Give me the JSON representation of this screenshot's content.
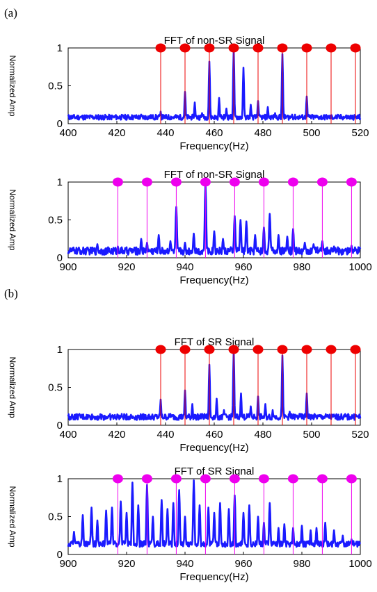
{
  "panel_labels": [
    "(a)",
    "(b)"
  ],
  "colors": {
    "signal": "#1a1aff",
    "marker_red": "#ee0000",
    "marker_magenta": "#ee00ee",
    "axis": "#000000"
  },
  "chart_data": [
    {
      "type": "line",
      "title": "FFT of non-SR Signal",
      "xlabel": "Frequency(Hz)",
      "ylabel": "Normalized Amp",
      "xlim": [
        400,
        520
      ],
      "ylim": [
        0,
        1
      ],
      "xticks": [
        400,
        420,
        440,
        460,
        480,
        500,
        520
      ],
      "yticks": [
        0,
        0.5,
        1
      ],
      "grid": false,
      "marker_color": "#ee0000",
      "markers": [
        438,
        448,
        458,
        468,
        478,
        488,
        498,
        508,
        518
      ],
      "baseline": 0.05,
      "noise": 0.07,
      "peaks": [
        [
          430,
          0.12
        ],
        [
          434,
          0.1
        ],
        [
          438,
          0.16
        ],
        [
          444,
          0.08
        ],
        [
          448,
          0.42
        ],
        [
          452,
          0.28
        ],
        [
          455,
          0.14
        ],
        [
          458,
          0.82
        ],
        [
          462,
          0.34
        ],
        [
          465,
          0.2
        ],
        [
          468,
          0.98
        ],
        [
          472,
          0.74
        ],
        [
          475,
          0.25
        ],
        [
          478,
          0.3
        ],
        [
          482,
          0.22
        ],
        [
          485,
          0.14
        ],
        [
          488,
          0.92
        ],
        [
          492,
          0.12
        ],
        [
          495,
          0.08
        ],
        [
          498,
          0.36
        ],
        [
          505,
          0.07
        ],
        [
          512,
          0.06
        ],
        [
          516,
          0.08
        ]
      ]
    },
    {
      "type": "line",
      "title": "FFT of non-SR Signal",
      "xlabel": "Frequency(Hz)",
      "ylabel": "Normalized Amp",
      "xlim": [
        900,
        1000
      ],
      "ylim": [
        0,
        1
      ],
      "xticks": [
        900,
        920,
        940,
        960,
        980,
        1000
      ],
      "yticks": [
        0,
        0.5,
        1
      ],
      "grid": false,
      "marker_color": "#ee00ee",
      "markers": [
        917,
        927,
        937,
        947,
        957,
        967,
        977,
        987,
        997
      ],
      "baseline": 0.04,
      "noise": 0.1,
      "peaks": [
        [
          910,
          0.18
        ],
        [
          917,
          0.15
        ],
        [
          921,
          0.12
        ],
        [
          925,
          0.25
        ],
        [
          927,
          0.2
        ],
        [
          931,
          0.3
        ],
        [
          935,
          0.22
        ],
        [
          937,
          0.67
        ],
        [
          940,
          0.2
        ],
        [
          943,
          0.32
        ],
        [
          947,
          0.97
        ],
        [
          950,
          0.35
        ],
        [
          953,
          0.25
        ],
        [
          957,
          0.55
        ],
        [
          959,
          0.5
        ],
        [
          961,
          0.48
        ],
        [
          964,
          0.3
        ],
        [
          967,
          0.4
        ],
        [
          969,
          0.58
        ],
        [
          972,
          0.3
        ],
        [
          975,
          0.28
        ],
        [
          977,
          0.38
        ],
        [
          981,
          0.2
        ],
        [
          984,
          0.18
        ],
        [
          987,
          0.22
        ],
        [
          991,
          0.15
        ],
        [
          995,
          0.12
        ],
        [
          997,
          0.16
        ]
      ]
    },
    {
      "type": "line",
      "title": "FFT of SR Signal",
      "xlabel": "Frequency(Hz)",
      "ylabel": "Normalized Amp",
      "xlim": [
        400,
        520
      ],
      "ylim": [
        0,
        1
      ],
      "xticks": [
        400,
        420,
        440,
        460,
        480,
        500,
        520
      ],
      "yticks": [
        0,
        0.5,
        1
      ],
      "grid": false,
      "marker_color": "#ee0000",
      "markers": [
        438,
        448,
        458,
        468,
        478,
        488,
        498,
        508,
        518
      ],
      "baseline": 0.07,
      "noise": 0.08,
      "peaks": [
        [
          436,
          0.12
        ],
        [
          438,
          0.34
        ],
        [
          442,
          0.15
        ],
        [
          448,
          0.46
        ],
        [
          451,
          0.28
        ],
        [
          455,
          0.15
        ],
        [
          458,
          0.8
        ],
        [
          461,
          0.35
        ],
        [
          464,
          0.2
        ],
        [
          468,
          0.98
        ],
        [
          471,
          0.42
        ],
        [
          475,
          0.25
        ],
        [
          478,
          0.38
        ],
        [
          481,
          0.28
        ],
        [
          484,
          0.2
        ],
        [
          488,
          0.92
        ],
        [
          491,
          0.18
        ],
        [
          495,
          0.15
        ],
        [
          498,
          0.42
        ],
        [
          502,
          0.12
        ],
        [
          506,
          0.1
        ],
        [
          510,
          0.12
        ],
        [
          514,
          0.1
        ],
        [
          518,
          0.14
        ]
      ]
    },
    {
      "type": "line",
      "title": "FFT of SR Signal",
      "xlabel": "Frequency(Hz)",
      "ylabel": "Normalized Amp",
      "xlim": [
        900,
        1000
      ],
      "ylim": [
        0,
        1
      ],
      "xticks": [
        900,
        920,
        940,
        960,
        980,
        1000
      ],
      "yticks": [
        0,
        0.5,
        1
      ],
      "grid": false,
      "marker_color": "#ee00ee",
      "markers": [
        917,
        927,
        937,
        947,
        957,
        967,
        977,
        987,
        997
      ],
      "baseline": 0.1,
      "noise": 0.08,
      "peaks": [
        [
          902,
          0.3
        ],
        [
          905,
          0.52
        ],
        [
          908,
          0.62
        ],
        [
          910,
          0.45
        ],
        [
          913,
          0.58
        ],
        [
          915,
          0.62
        ],
        [
          918,
          0.7
        ],
        [
          920,
          0.55
        ],
        [
          922,
          0.95
        ],
        [
          924,
          0.65
        ],
        [
          927,
          0.92
        ],
        [
          929,
          0.5
        ],
        [
          932,
          0.72
        ],
        [
          934,
          0.6
        ],
        [
          936,
          0.68
        ],
        [
          938,
          0.85
        ],
        [
          940,
          0.5
        ],
        [
          943,
          0.98
        ],
        [
          945,
          0.65
        ],
        [
          948,
          0.62
        ],
        [
          950,
          0.55
        ],
        [
          952,
          0.68
        ],
        [
          955,
          0.6
        ],
        [
          957,
          0.78
        ],
        [
          960,
          0.55
        ],
        [
          962,
          0.65
        ],
        [
          965,
          0.5
        ],
        [
          967,
          0.42
        ],
        [
          969,
          0.68
        ],
        [
          972,
          0.35
        ],
        [
          974,
          0.4
        ],
        [
          977,
          0.35
        ],
        [
          980,
          0.38
        ],
        [
          983,
          0.32
        ],
        [
          985,
          0.35
        ],
        [
          988,
          0.42
        ],
        [
          991,
          0.32
        ],
        [
          994,
          0.25
        ],
        [
          997,
          0.2
        ]
      ]
    }
  ]
}
